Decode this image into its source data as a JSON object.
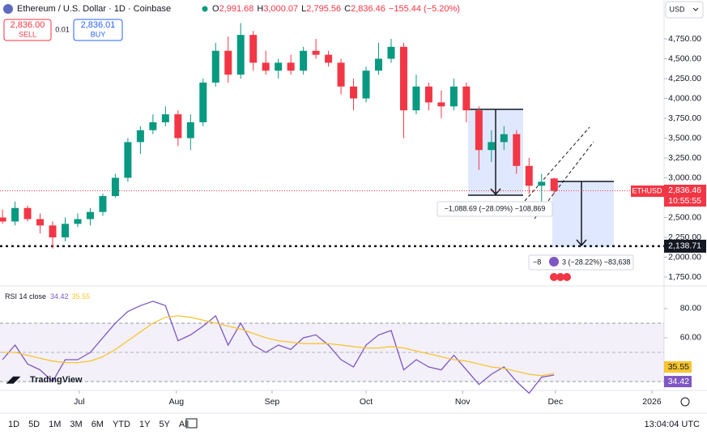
{
  "header": {
    "symbol": "Ethereum / U.S. Dollar · 1D · Coinbase",
    "o_label": "O",
    "open": "2,991.68",
    "h_label": "H",
    "high": "3,000.07",
    "l_label": "L",
    "low": "2,795.56",
    "c_label": "C",
    "close": "2,836.46",
    "change": "−155.44 (−5.20%)"
  },
  "trade": {
    "sell_price": "2,836.00",
    "sell": "SELL",
    "spread": "0.01",
    "buy_price": "2,836.01",
    "buy": "BUY"
  },
  "currency": "USD",
  "price_tags": {
    "symbol": "ETHUSD",
    "price": "2,836.46",
    "countdown": "10:55:55"
  },
  "measures": [
    "−1,088.69 (−28.09%) −108,869",
    "−8",
    "3 (−28.22%) −83,638"
  ],
  "logo": "TradingView",
  "ranges": [
    "1D",
    "5D",
    "1M",
    "3M",
    "6M",
    "YTD",
    "1Y",
    "5Y",
    "All"
  ],
  "clock": "13:04:04 UTC",
  "chart_data": [
    {
      "type": "candlestick",
      "categories": [
        null,
        null,
        null,
        null,
        null,
        null,
        null,
        null,
        null,
        null,
        null,
        null,
        null,
        null,
        null,
        null,
        null,
        null,
        null,
        null,
        null,
        null,
        null,
        null,
        null,
        null,
        null,
        null,
        null,
        null,
        null,
        null,
        null,
        null,
        null,
        null,
        null,
        null,
        null,
        null,
        null,
        null,
        null,
        null,
        null
      ],
      "open": [
        2500,
        2450,
        2620,
        2480,
        2400,
        2250,
        2420,
        2480,
        2570,
        2770,
        3000,
        3450,
        3600,
        3700,
        3800,
        3500,
        3700,
        4200,
        4600,
        4300,
        4800,
        4450,
        4350,
        4450,
        4350,
        4600,
        4550,
        4450,
        4150,
        4000,
        4350,
        4500,
        4650,
        3850,
        4150,
        3950,
        3900,
        4150,
        3850,
        3350,
        3450,
        3550,
        3150,
        2900,
        2991.68
      ],
      "high": [
        2600,
        2700,
        2650,
        2550,
        2450,
        2500,
        2550,
        2620,
        2800,
        3050,
        3500,
        3650,
        3800,
        3900,
        3850,
        3800,
        4250,
        4700,
        4780,
        4950,
        4850,
        4600,
        4500,
        4550,
        4650,
        4750,
        4600,
        4500,
        4250,
        4400,
        4700,
        4750,
        4700,
        4300,
        4200,
        4100,
        4250,
        4200,
        3900,
        3600,
        3650,
        3600,
        3250,
        3050,
        3000.07
      ],
      "low": [
        2420,
        2400,
        2450,
        2300,
        2110,
        2200,
        2380,
        2400,
        2520,
        2750,
        2950,
        3300,
        3550,
        3650,
        3400,
        3350,
        3650,
        4150,
        4200,
        4250,
        4350,
        4300,
        4250,
        4300,
        4300,
        4500,
        4400,
        4050,
        3850,
        3950,
        4300,
        4450,
        3500,
        3800,
        3850,
        3750,
        3850,
        3700,
        3100,
        3200,
        3350,
        3050,
        2800,
        2650,
        2795.56
      ],
      "close": [
        2450,
        2620,
        2480,
        2400,
        2250,
        2420,
        2480,
        2570,
        2770,
        3000,
        3450,
        3600,
        3700,
        3800,
        3500,
        3700,
        4200,
        4600,
        4300,
        4800,
        4450,
        4350,
        4450,
        4350,
        4600,
        4550,
        4450,
        4150,
        4000,
        4350,
        4500,
        4650,
        3850,
        4150,
        3950,
        3900,
        4150,
        3850,
        3350,
        3450,
        3550,
        3150,
        2900,
        2950,
        2836.46
      ],
      "up_color": "#089981",
      "down_color": "#f23645",
      "xlim": [
        -0.2,
        52.77
      ],
      "xticks": [
        {
          "value": 6.12,
          "label": "Jul"
        },
        {
          "value": 13.87,
          "label": "Aug"
        },
        {
          "value": 21.5,
          "label": "Sep"
        },
        {
          "value": 29.0,
          "label": "Oct"
        },
        {
          "value": 36.7,
          "label": "Nov"
        },
        {
          "value": 44.1,
          "label": "Dec"
        },
        {
          "value": 51.8,
          "label": "2026"
        }
      ],
      "ylim": [
        1648,
        5240
      ],
      "yticks": [
        {
          "value": 1750,
          "label": "1,750.00"
        },
        {
          "value": 2000,
          "label": "2,000.00"
        },
        {
          "value": 2250,
          "label": "2,250.00"
        },
        {
          "value": 2500,
          "label": "2,500.00"
        },
        {
          "value": 2750,
          "label": "2,750.00"
        },
        {
          "value": 3000,
          "label": "3,000.00"
        },
        {
          "value": 3250,
          "label": "3,250.00"
        },
        {
          "value": 3500,
          "label": "3,500.00"
        },
        {
          "value": 3750,
          "label": "3,750.00"
        },
        {
          "value": 4000,
          "label": "4,000.00"
        },
        {
          "value": 4250,
          "label": "4,250.00"
        },
        {
          "value": 4500,
          "label": "4,500.00"
        },
        {
          "value": 4750,
          "label": "4,750.00"
        }
      ],
      "level": {
        "value": 2138.71,
        "label": "2,138.71"
      }
    },
    {
      "type": "line",
      "title": "RSI 14 close",
      "categories": [
        null,
        null,
        null,
        null,
        null,
        null,
        null,
        null,
        null,
        null,
        null,
        null,
        null,
        null,
        null,
        null,
        null,
        null,
        null,
        null,
        null,
        null,
        null,
        null,
        null,
        null,
        null,
        null,
        null,
        null,
        null,
        null,
        null,
        null,
        null,
        null,
        null,
        null,
        null,
        null,
        null,
        null,
        null,
        null,
        null
      ],
      "series": [
        {
          "color": "#7e57c2",
          "values": [
            45,
            55,
            42,
            38,
            30,
            45,
            45,
            50,
            60,
            70,
            78,
            82,
            85,
            82,
            58,
            62,
            68,
            75,
            55,
            70,
            55,
            50,
            55,
            52,
            60,
            62,
            55,
            45,
            40,
            55,
            62,
            65,
            38,
            45,
            40,
            38,
            48,
            38,
            28,
            35,
            40,
            30,
            22,
            33,
            34.42
          ]
        },
        {
          "color": "#f7c531",
          "values": [
            50,
            50,
            48,
            46,
            44,
            43,
            43,
            44,
            47,
            52,
            58,
            64,
            70,
            74,
            75,
            74,
            72,
            70,
            68,
            66,
            63,
            60,
            58,
            57,
            56,
            56,
            56,
            55,
            54,
            53,
            53,
            54,
            53,
            51,
            49,
            47,
            45,
            44,
            42,
            40,
            39,
            37,
            35,
            34,
            35.55
          ]
        }
      ],
      "xlim": [
        -0.2,
        52.77
      ],
      "ylim": [
        25,
        94.4
      ],
      "yticks": [
        {
          "value": 60,
          "label": "60.00"
        },
        {
          "value": 80,
          "label": "80.00"
        }
      ]
    }
  ]
}
